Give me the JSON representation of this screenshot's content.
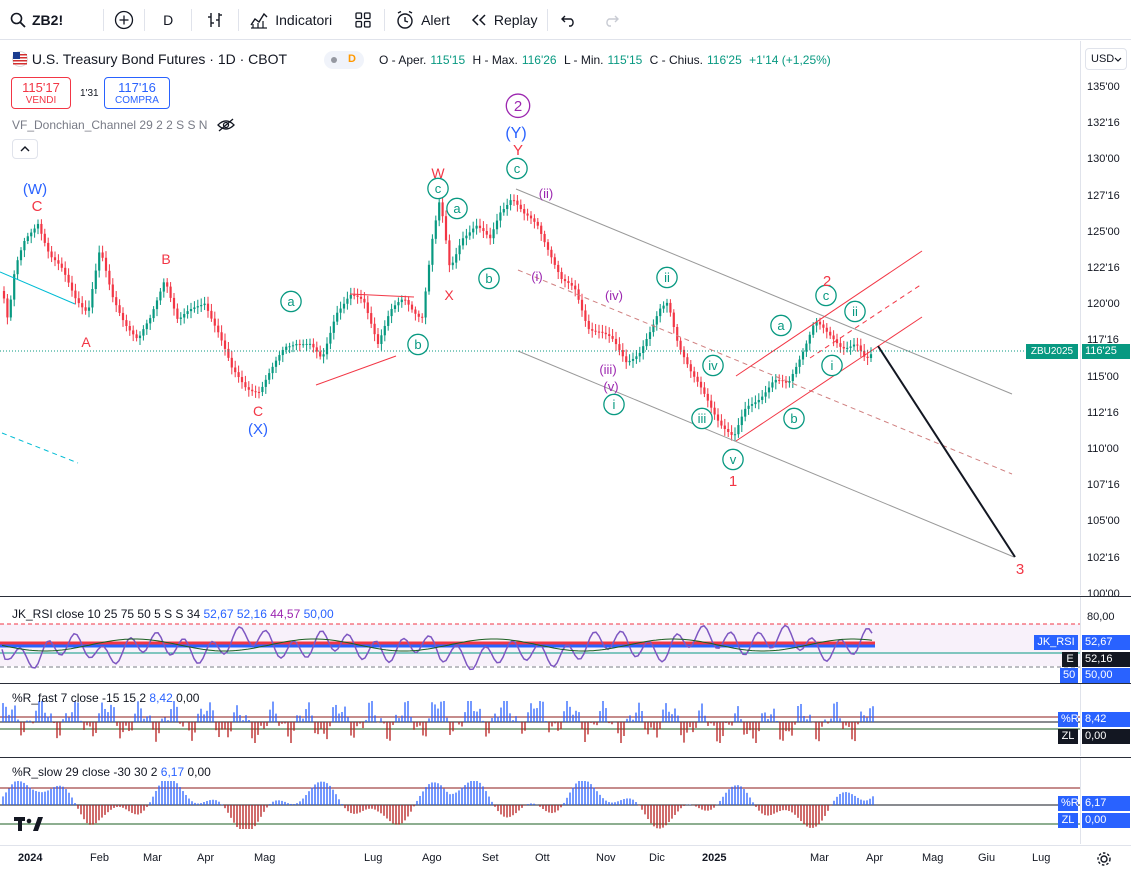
{
  "toolbar": {
    "symbol": "ZB2!",
    "interval": "D",
    "indicators_label": "Indicatori",
    "alert_label": "Alert",
    "replay_label": "Replay"
  },
  "header": {
    "title": "U.S. Treasury Bond Futures · 1D · CBOT",
    "badge": "D",
    "ohlc": {
      "o_label": "O - Aper.",
      "o": "115'15",
      "h_label": "H - Max.",
      "h": "116'26",
      "l_label": "L - Min.",
      "l": "115'15",
      "c_label": "C - Chius.",
      "c": "116'25",
      "change": "+1'14 (+1,25%)"
    },
    "sell_price": "115'17",
    "sell_label": "VENDI",
    "spread": "1'31",
    "buy_price": "117'16",
    "buy_label": "COMPRA",
    "indicator": "VF_Donchian_Channel 29 2 2 S S N"
  },
  "currency": "USD",
  "price_axis": [
    "135'00",
    "132'16",
    "130'00",
    "127'16",
    "125'00",
    "122'16",
    "120'00",
    "117'16",
    "115'00",
    "112'16",
    "110'00",
    "107'16",
    "105'00",
    "102'16",
    "100'00"
  ],
  "last_price_tag": {
    "symbol": "ZBU2025",
    "price": "116'25"
  },
  "time_axis": [
    "2024",
    "Feb",
    "Mar",
    "Apr",
    "Mag",
    "Lug",
    "Ago",
    "Set",
    "Ott",
    "Nov",
    "Dic",
    "2025",
    "Mar",
    "Apr",
    "Mag",
    "Giu",
    "Lug"
  ],
  "wave_labels": {
    "W1": "(W)",
    "C1": "C",
    "A1": "A",
    "B1": "B",
    "C2": "C",
    "X2": "(X)",
    "a1": "a",
    "b1": "b",
    "W2": "W",
    "X3": "X",
    "c1": "c",
    "a2": "a",
    "b2": "b",
    "n2": "2",
    "Y1": "(Y)",
    "Y2": "Y",
    "c2": "c",
    "ii1": "(ii)",
    "i1": "(i)",
    "iv1": "(iv)",
    "iii1": "(iii)",
    "v1": "(v)",
    "i2": "i",
    "ii2": "ii",
    "iv2": "iv",
    "iii2": "iii",
    "v2": "v",
    "n1": "1",
    "a3": "a",
    "b3": "b",
    "c3": "c",
    "n2b": "2",
    "ii3": "ii",
    "i3": "i",
    "n3": "3"
  },
  "rsi": {
    "legend": "JK_RSI close 10 25 75 50 5 S S 34",
    "values": [
      "52,67",
      "52,16",
      "44,57",
      "50,00"
    ],
    "axis": "80,00",
    "tag1_name": "JK_RSI",
    "tag1_val": "52,67",
    "tag2_name": "E",
    "tag2_val": "52,16",
    "tag3_name": "50",
    "tag3_val": "50,00"
  },
  "r_fast": {
    "legend": "%R_fast 7 close -15 15 2",
    "values": [
      "8,42",
      "0,00"
    ],
    "tag1_name": "%R",
    "tag1_val": "8,42",
    "tag2_name": "ZL",
    "tag2_val": "0,00"
  },
  "r_slow": {
    "legend": "%R_slow 29 close -30 30 2",
    "values": [
      "6,17",
      "0,00"
    ],
    "tag1_name": "%R",
    "tag1_val": "6,17",
    "tag2_name": "ZL",
    "tag2_val": "0,00"
  },
  "colors": {
    "up": "#089981",
    "down": "#f23645",
    "accent": "#2962ff",
    "purple": "#9c27b0"
  }
}
